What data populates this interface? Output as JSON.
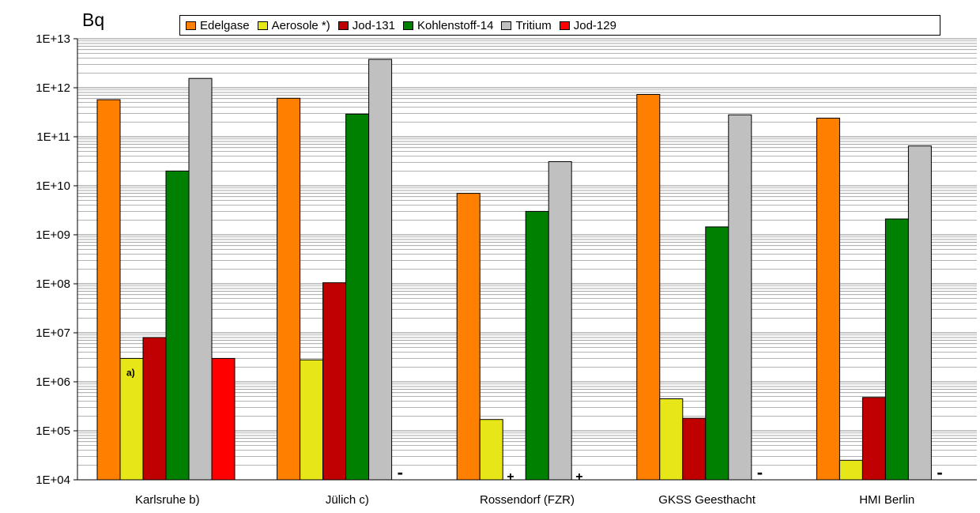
{
  "chart_data": {
    "type": "bar",
    "ylabel": "Bq",
    "yscale": "log",
    "ylim": [
      10000,
      10000000000000
    ],
    "yticks": [
      "1E+04",
      "1E+05",
      "1E+06",
      "1E+07",
      "1E+08",
      "1E+09",
      "1E+10",
      "1E+11",
      "1E+12",
      "1E+13"
    ],
    "grid": "horizontal minor lines",
    "legend_position": "top",
    "categories": [
      "Karlsruhe b)",
      "Jülich c)",
      "Rossendorf (FZR)",
      "GKSS Geesthacht",
      "HMI Berlin"
    ],
    "series": [
      {
        "name": "Edelgase",
        "color": "#ff8000",
        "values": [
          570000000000,
          610000000000,
          7000000000,
          730000000000,
          240000000000
        ]
      },
      {
        "name": "Aerosole *)",
        "color": "#e6e619",
        "values": [
          3000000,
          2800000,
          170000,
          450000,
          25000
        ]
      },
      {
        "name": "Jod-131",
        "color": "#c00000",
        "values": [
          8000000,
          105000000,
          null,
          180000,
          480000
        ]
      },
      {
        "name": "Kohlenstoff-14",
        "color": "#008000",
        "values": [
          20000000000,
          290000000000,
          3000000000,
          1450000000,
          2100000000
        ]
      },
      {
        "name": "Tritium",
        "color": "#c0c0c0",
        "values": [
          1550000000000,
          3800000000000,
          31000000000,
          280000000000,
          65000000000
        ]
      },
      {
        "name": "Jod-129",
        "color": "#ff0000",
        "values": [
          3000000,
          null,
          null,
          null,
          null
        ]
      }
    ],
    "annotations": [
      {
        "category": "Karlsruhe b)",
        "series": "Aerosole *)",
        "text": "a)"
      },
      {
        "category": "Jülich c)",
        "series": "Jod-129",
        "text": "-"
      },
      {
        "category": "Rossendorf (FZR)",
        "series": "Jod-131",
        "text": "+"
      },
      {
        "category": "Rossendorf (FZR)",
        "series": "Jod-129",
        "text": "+"
      },
      {
        "category": "GKSS Geesthacht",
        "series": "Jod-129",
        "text": "-"
      },
      {
        "category": "HMI Berlin",
        "series": "Jod-129",
        "text": "-"
      }
    ]
  }
}
